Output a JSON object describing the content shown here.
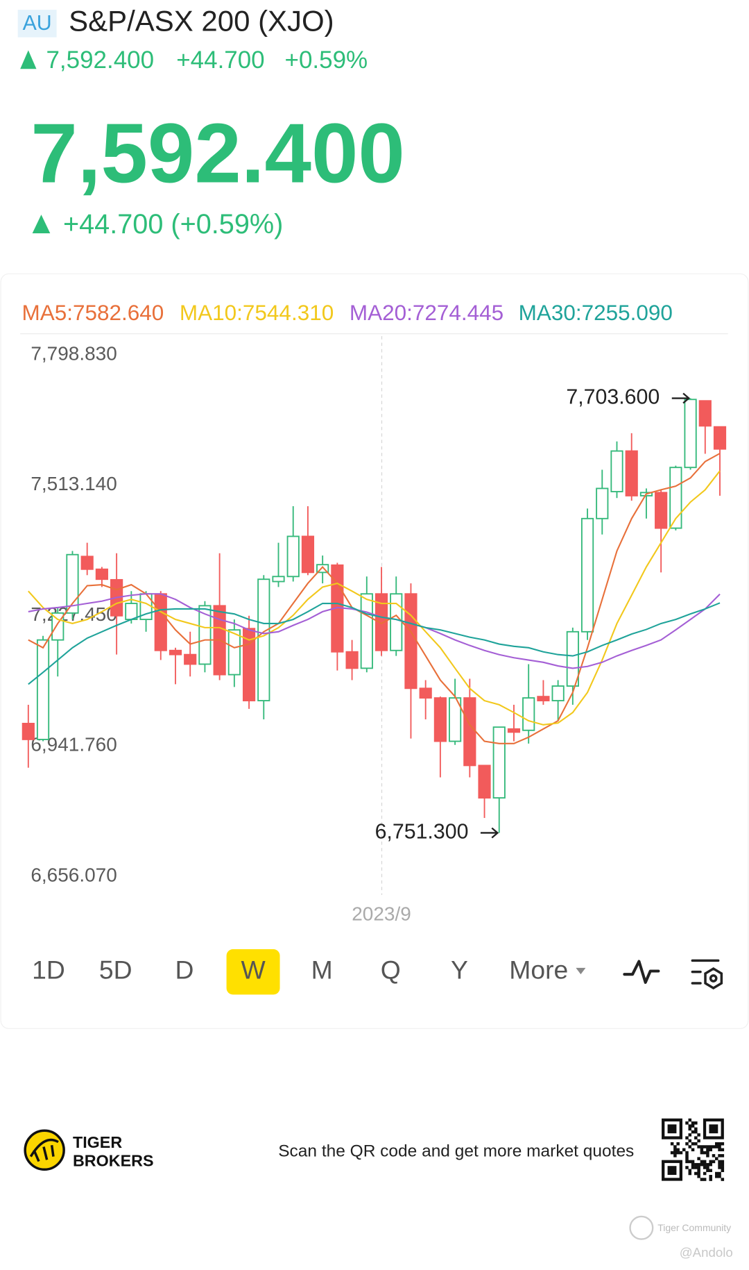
{
  "header": {
    "market": "AU",
    "title": "S&P/ASX 200 (XJO)",
    "price": "7,592.400",
    "change": "+44.700",
    "change_pct": "+0.59%",
    "big_price": "7,592.400",
    "big_change": "+44.700 (+0.59%)"
  },
  "chart_data": {
    "type": "candlestick",
    "categories": [
      null,
      null,
      null,
      null,
      null,
      null,
      null,
      null,
      null,
      null,
      null,
      null,
      null,
      null,
      null,
      null,
      null,
      null,
      null,
      null,
      null,
      null,
      null,
      null,
      "2023/9",
      null,
      null,
      null,
      null,
      null,
      null,
      null,
      null,
      null,
      null,
      null,
      null,
      null,
      null,
      null,
      null,
      null,
      null,
      null,
      null,
      null,
      null,
      null
    ],
    "open": [
      6991,
      6956,
      7174,
      7233,
      7357,
      7329,
      7306,
      7219,
      7219,
      7275,
      7151,
      7142,
      7121,
      7249,
      7098,
      7199,
      7041,
      7302,
      7313,
      7401,
      7322,
      7338,
      7148,
      7112,
      7275,
      7151,
      7275,
      7068,
      7047,
      6952,
      7047,
      6899,
      6828,
      6979,
      6976,
      7050,
      7041,
      7073,
      7192,
      7440,
      7499,
      7588,
      7490,
      7497,
      7419,
      7552,
      7698,
      7641
    ],
    "high": [
      7032,
      7183,
      7245,
      7369,
      7387,
      7334,
      7364,
      7281,
      7281,
      7281,
      7157,
      7192,
      7259,
      7364,
      7219,
      7227,
      7316,
      7387,
      7467,
      7467,
      7359,
      7343,
      7174,
      7313,
      7334,
      7313,
      7298,
      7086,
      7050,
      7089,
      7089,
      6899,
      6983,
      7032,
      7121,
      7086,
      7086,
      7201,
      7462,
      7547,
      7609,
      7627,
      7506,
      7503,
      7556,
      7703.6,
      7698,
      7641
    ],
    "low": [
      6894,
      6952,
      7094,
      7219,
      7316,
      7290,
      7142,
      7210,
      7192,
      7130,
      7077,
      7094,
      7103,
      7086,
      7071,
      7023,
      7000,
      7290,
      7302,
      7316,
      7298,
      7107,
      7086,
      7103,
      7139,
      7139,
      6958,
      7000,
      6873,
      6944,
      6873,
      6784,
      6751.3,
      6952,
      6947,
      7032,
      6997,
      7032,
      7174,
      7405,
      7485,
      7479,
      7440,
      7322,
      7414,
      7547,
      7582,
      7490
    ],
    "close": [
      6956,
      7174,
      7233,
      7361,
      7329,
      7307,
      7227,
      7254,
      7275,
      7151,
      7142,
      7121,
      7249,
      7098,
      7196,
      7041,
      7307,
      7313,
      7401,
      7322,
      7339,
      7148,
      7112,
      7275,
      7151,
      7275,
      7068,
      7047,
      6952,
      7047,
      6899,
      6828,
      6983,
      6972,
      7047,
      7041,
      7073,
      7192,
      7440,
      7506,
      7588,
      7490,
      7497,
      7419,
      7552,
      7701,
      7643,
      7592.4
    ],
    "up_color": "#35b97b",
    "down_color": "#f25b5b",
    "series": [
      {
        "name": "MA5:7582.640",
        "color": "#e8703a",
        "values": [
          7174,
          7157,
          7210,
          7254,
          7293,
          7295,
          7284,
          7295,
          7275,
          7236,
          7196,
          7165,
          7174,
          7174,
          7157,
          7165,
          7192,
          7210,
          7254,
          7298,
          7334,
          7298,
          7245,
          7228,
          7210,
          7228,
          7192,
          7139,
          7086,
          7050,
          6988,
          6952,
          6947,
          6947,
          6961,
          6979,
          6997,
          7059,
          7157,
          7263,
          7369,
          7440,
          7494,
          7503,
          7511,
          7529,
          7565,
          7582.64
        ]
      },
      {
        "name": "MA10:7544.310",
        "color": "#f2c81c",
        "values": [
          7281,
          7245,
          7219,
          7210,
          7219,
          7236,
          7254,
          7263,
          7254,
          7236,
          7219,
          7210,
          7201,
          7201,
          7188,
          7174,
          7183,
          7201,
          7228,
          7263,
          7290,
          7298,
          7281,
          7263,
          7254,
          7254,
          7228,
          7192,
          7157,
          7112,
          7068,
          7041,
          7032,
          7015,
          6997,
          6988,
          6992,
          7015,
          7059,
          7130,
          7210,
          7272,
          7334,
          7387,
          7440,
          7476,
          7503,
          7544.31
        ]
      },
      {
        "name": "MA20:7274.445",
        "color": "#a45fd5",
        "values": [
          7236,
          7242,
          7245,
          7249,
          7254,
          7259,
          7267,
          7272,
          7275,
          7275,
          7263,
          7245,
          7231,
          7219,
          7210,
          7196,
          7188,
          7192,
          7206,
          7219,
          7236,
          7245,
          7242,
          7235,
          7224,
          7219,
          7210,
          7201,
          7188,
          7174,
          7162,
          7151,
          7142,
          7135,
          7130,
          7125,
          7117,
          7112,
          7116,
          7125,
          7139,
          7151,
          7162,
          7174,
          7196,
          7219,
          7242,
          7274.445
        ]
      },
      {
        "name": "MA30:7255.090",
        "color": "#1fa39a",
        "values": [
          7077,
          7103,
          7130,
          7157,
          7178,
          7192,
          7206,
          7219,
          7231,
          7240,
          7242,
          7242,
          7242,
          7236,
          7231,
          7219,
          7210,
          7210,
          7219,
          7236,
          7254,
          7254,
          7245,
          7231,
          7224,
          7219,
          7210,
          7201,
          7196,
          7188,
          7180,
          7174,
          7165,
          7160,
          7157,
          7148,
          7142,
          7139,
          7148,
          7162,
          7174,
          7187,
          7197,
          7210,
          7219,
          7231,
          7242,
          7255.09
        ]
      }
    ],
    "ylim": [
      6656.07,
      7798.83
    ],
    "yticks": [
      {
        "value": 6656.07,
        "label": "6,656.070"
      },
      {
        "value": 6941.76,
        "label": "6,941.760"
      },
      {
        "value": 7227.45,
        "label": "7,227.450"
      },
      {
        "value": 7513.14,
        "label": "7,513.140"
      },
      {
        "value": 7798.83,
        "label": "7,798.830"
      }
    ],
    "grid": false,
    "annotations": [
      {
        "value": 7703.6,
        "label": "7,703.600"
      },
      {
        "value": 6751.3,
        "label": "6,751.300"
      }
    ]
  },
  "tabs": [
    "1D",
    "5D",
    "D",
    "W",
    "M",
    "Q",
    "Y",
    "More"
  ],
  "footer": {
    "brand_1": "TIGER",
    "brand_2": "BROKERS",
    "qr_text": "Scan the QR code and get more market quotes",
    "community": "Tiger Community",
    "handle": "@Andolo"
  }
}
